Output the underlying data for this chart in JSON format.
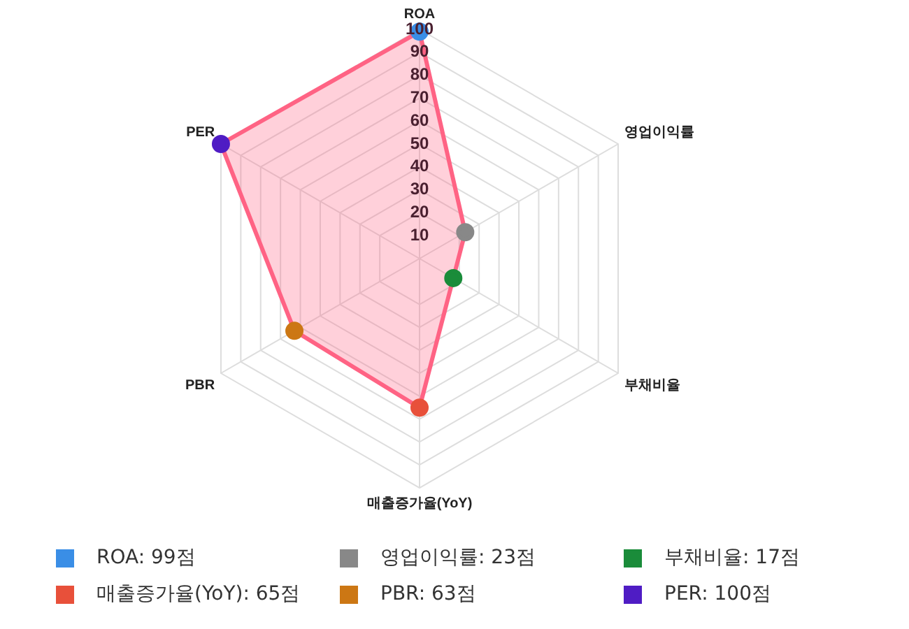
{
  "chart_data": {
    "type": "radar",
    "categories": [
      "ROA",
      "영업이익률",
      "부채비율",
      "매출증가율(YoY)",
      "PBR",
      "PER"
    ],
    "series": [
      {
        "color": "#ff6384",
        "colors": [
          "#3a8ee6",
          "#888888",
          "#1a8c3a",
          "#e8503a",
          "#cc7714",
          "#4f1cc4"
        ],
        "values": [
          99,
          23,
          17,
          65,
          63,
          100
        ]
      }
    ],
    "annotations": [
      "ROA: 99점",
      "영업이익률: 23점",
      "부채비율: 17점",
      "매출증가율(YoY): 65점",
      "PBR: 63점",
      "PER: 100점"
    ],
    "ylim": [
      0,
      100
    ],
    "yticks": [
      10,
      20,
      30,
      40,
      50,
      60,
      70,
      80,
      90,
      100
    ],
    "grid": true,
    "marker": "circle"
  }
}
